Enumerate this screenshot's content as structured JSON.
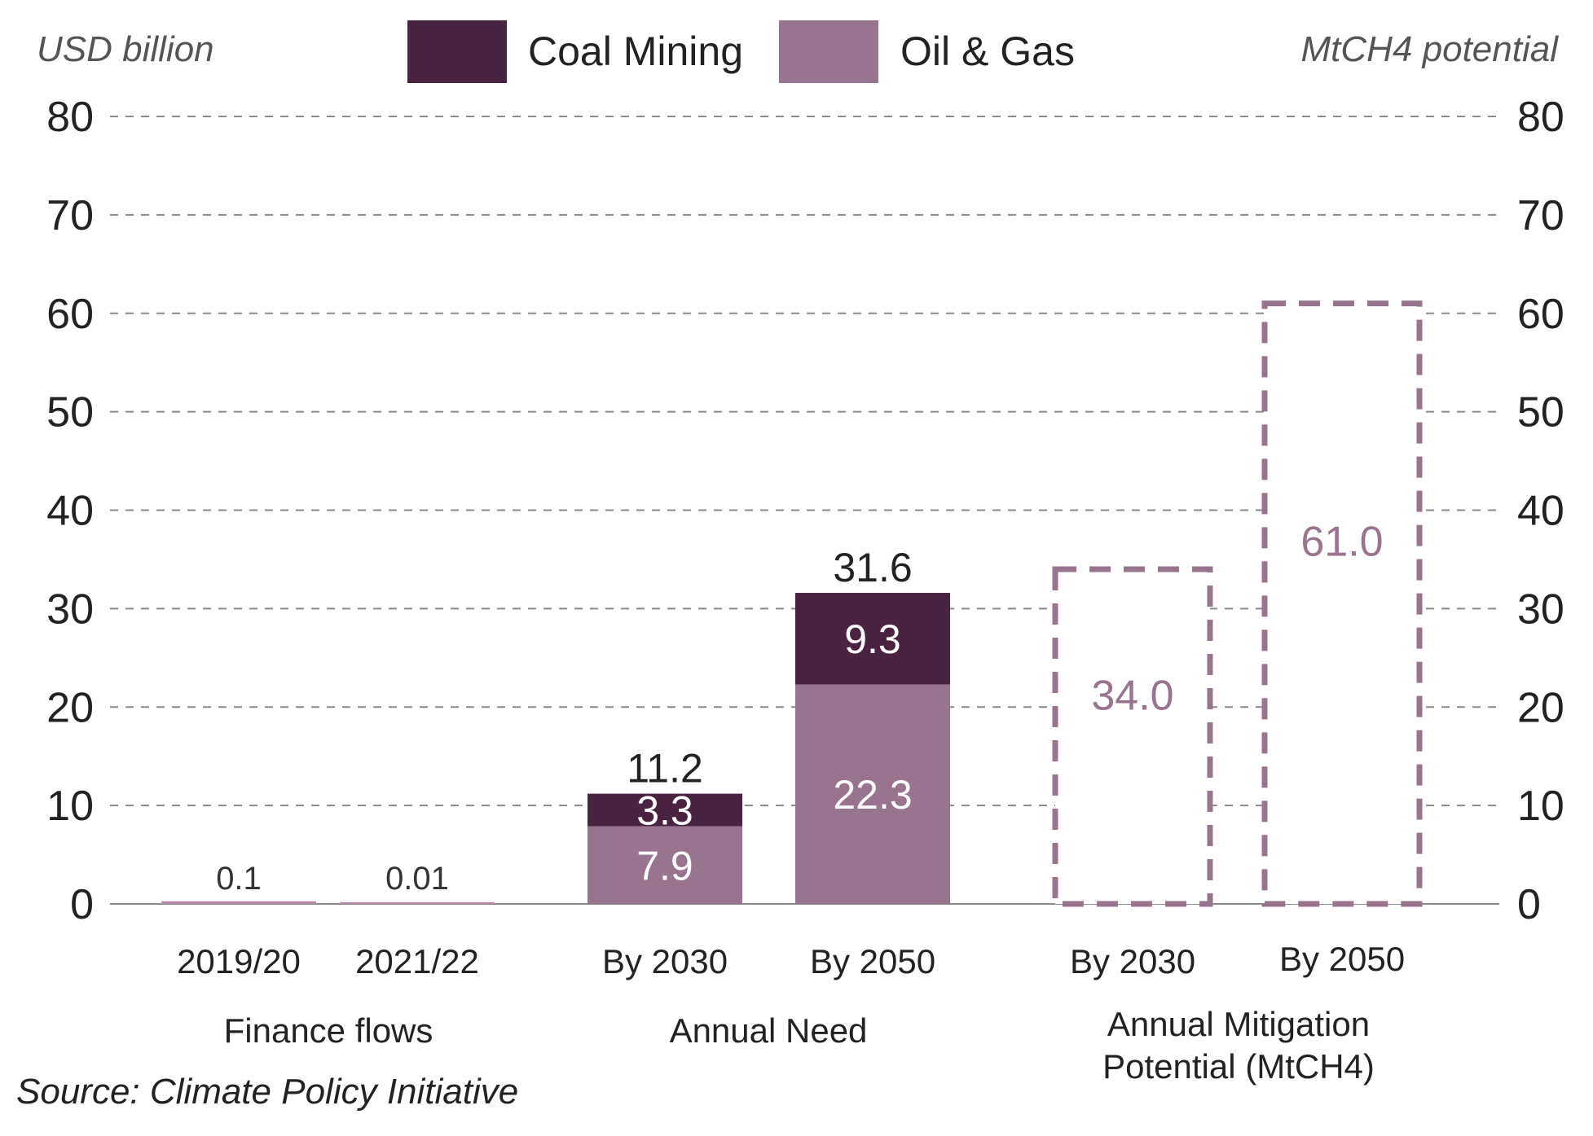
{
  "chart_data": {
    "type": "bar",
    "left_axis_title": "USD billion",
    "right_axis_title": "MtCH4 potential",
    "ylim": [
      0,
      80
    ],
    "yticks": [
      "0",
      "10",
      "20",
      "30",
      "40",
      "50",
      "60",
      "70",
      "80"
    ],
    "grid": true,
    "legend_position": "top-center",
    "colors": {
      "coal": "#4a2340",
      "oil_gas": "#98748f",
      "potential": "#98748f",
      "zero_line": "#b48aa8"
    },
    "legend": [
      {
        "key": "coal",
        "label": "Coal Mining"
      },
      {
        "key": "oil_gas",
        "label": "Oil & Gas"
      }
    ],
    "groups": [
      {
        "label": "Finance flows",
        "bars": [
          {
            "category": "2019/20",
            "value": 0.1,
            "value_label": "0.1"
          },
          {
            "category": "2021/22",
            "value": 0.01,
            "value_label": "0.01"
          }
        ]
      },
      {
        "label": "Annual Need",
        "bars": [
          {
            "category": "By 2030",
            "oil_gas": 7.9,
            "oil_gas_label": "7.9",
            "coal": 3.3,
            "coal_label": "3.3",
            "total": 11.2,
            "total_label": "11.2"
          },
          {
            "category": "By 2050",
            "oil_gas": 22.3,
            "oil_gas_label": "22.3",
            "coal": 9.3,
            "coal_label": "9.3",
            "total": 31.6,
            "total_label": "31.6"
          }
        ]
      },
      {
        "label_lines": [
          "Annual Mitigation",
          "Potential (MtCH4)"
        ],
        "bars": [
          {
            "category": "By 2030",
            "value": 34.0,
            "value_label": "34.0"
          },
          {
            "category": "By 2050",
            "value": 61.0,
            "value_label": "61.0"
          }
        ]
      }
    ]
  },
  "source": "Source: Climate Policy Initiative"
}
